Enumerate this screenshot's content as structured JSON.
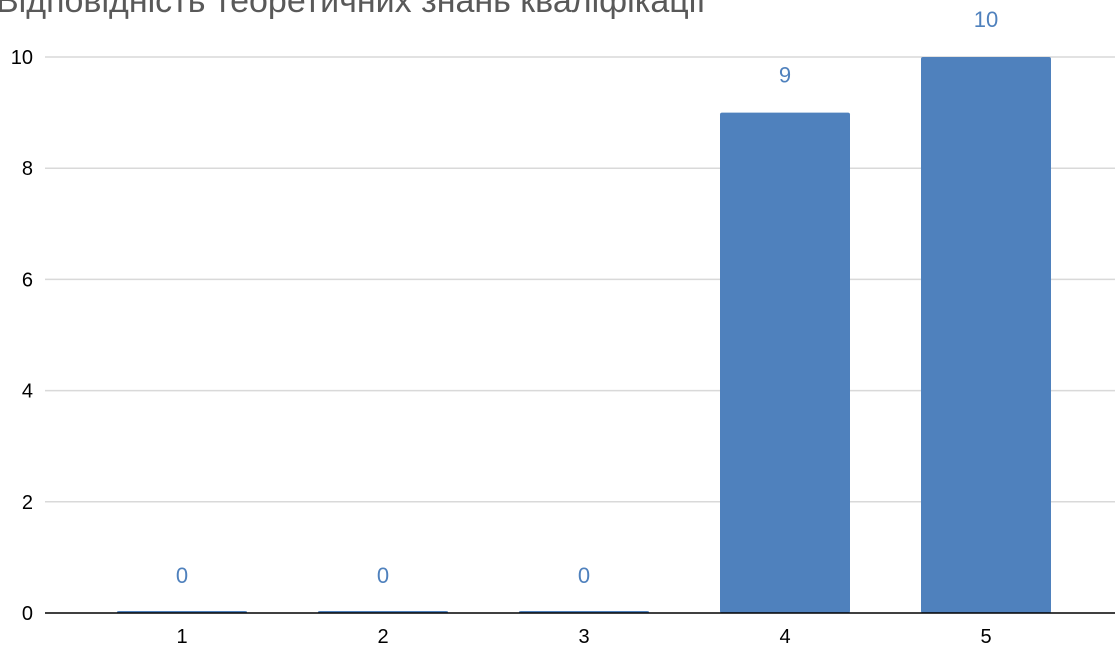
{
  "chart_data": {
    "type": "bar",
    "title": "Відповідність теоретичних знань кваліфікації",
    "categories": [
      "1",
      "2",
      "3",
      "4",
      "5"
    ],
    "values": [
      0,
      0,
      0,
      9,
      10
    ],
    "data_labels": [
      "0",
      "0",
      "0",
      "9",
      "10"
    ],
    "y_ticks": [
      "0",
      "2",
      "4",
      "6",
      "8",
      "10"
    ],
    "ylim": [
      0,
      10
    ],
    "grid": true,
    "legend": "none",
    "colors": {
      "bar": "#4F81BD",
      "data_label": "#4F81BD",
      "grid": "#D9D9D9",
      "axis": "#000000",
      "title": "#595959"
    }
  }
}
